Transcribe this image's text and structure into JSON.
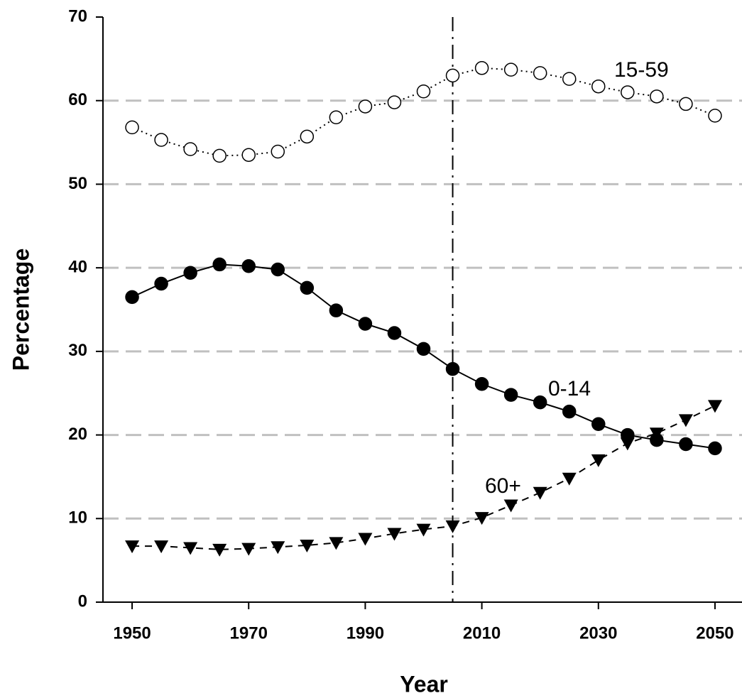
{
  "chart_data": {
    "type": "line",
    "x_label": "Year",
    "y_label": "Percentage",
    "x": [
      1950,
      1955,
      1960,
      1965,
      1970,
      1975,
      1980,
      1985,
      1990,
      1995,
      2000,
      2005,
      2010,
      2015,
      2020,
      2025,
      2030,
      2035,
      2040,
      2045,
      2050
    ],
    "series": [
      {
        "name": "15-59",
        "color": "#000000",
        "marker": "circle-open",
        "line_style": "dotted",
        "values": [
          56.8,
          55.3,
          54.2,
          53.4,
          53.5,
          53.9,
          55.7,
          58.0,
          59.3,
          59.8,
          61.1,
          63.0,
          63.9,
          63.7,
          63.3,
          62.6,
          61.7,
          61.0,
          60.5,
          59.6,
          58.2
        ]
      },
      {
        "name": "0-14",
        "color": "#000000",
        "marker": "circle-filled",
        "line_style": "solid",
        "values": [
          36.5,
          38.1,
          39.4,
          40.4,
          40.2,
          39.8,
          37.6,
          34.9,
          33.3,
          32.2,
          30.3,
          27.9,
          26.1,
          24.8,
          23.9,
          22.8,
          21.3,
          20.0,
          19.4,
          18.9,
          18.4
        ]
      },
      {
        "name": "60+",
        "color": "#000000",
        "marker": "triangle-down",
        "line_style": "dashed",
        "values": [
          6.7,
          6.7,
          6.5,
          6.3,
          6.4,
          6.6,
          6.8,
          7.1,
          7.6,
          8.2,
          8.7,
          9.1,
          10.1,
          11.6,
          13.1,
          14.8,
          17.0,
          19.0,
          20.2,
          21.8,
          23.5
        ]
      }
    ],
    "xlim": [
      1945,
      2055
    ],
    "xticks": [
      1950,
      1970,
      1990,
      2010,
      2030,
      2050
    ],
    "ylim": [
      0,
      70
    ],
    "yticks": [
      0,
      10,
      20,
      30,
      40,
      50,
      60,
      70
    ],
    "grid": true,
    "grid_color": "#c0c0c0",
    "vline": 2005
  }
}
